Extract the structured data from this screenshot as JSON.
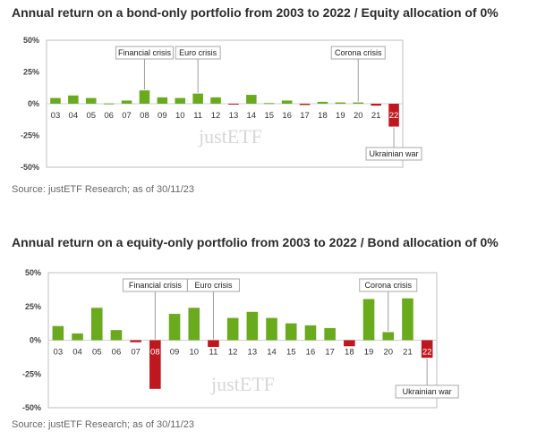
{
  "charts": [
    {
      "title": "Annual return on a bond-only portfolio from 2003 to 2022 / Equity allocation of 0%",
      "source": "Source: justETF Research; as of 30/11/23",
      "watermark": "justETF"
    },
    {
      "title": "Annual return on a equity-only portfolio from 2003 to 2022 / Bond allocation of 0%",
      "source": "Source: justETF Research; as of 30/11/23",
      "watermark": "justETF"
    }
  ],
  "colors": {
    "positive": "#6aab1d",
    "negative": "#c0171e",
    "frame": "#bfbfbf",
    "annotation_line": "#9e9e9e"
  },
  "chart_data": [
    {
      "type": "bar",
      "title": "Annual return on a bond-only portfolio from 2003 to 2022 / Equity allocation of 0%",
      "categories": [
        "03",
        "04",
        "05",
        "06",
        "07",
        "08",
        "09",
        "10",
        "11",
        "12",
        "13",
        "14",
        "15",
        "16",
        "17",
        "18",
        "19",
        "20",
        "21",
        "22"
      ],
      "values": [
        4.5,
        6.5,
        4.5,
        0.2,
        2.5,
        10.5,
        5,
        4.5,
        8,
        5,
        -0.5,
        7,
        0.5,
        2.5,
        -1,
        1.5,
        1,
        1,
        -1.5,
        -18
      ],
      "yticks": [
        "50%",
        "25%",
        "0%",
        "-25%",
        "-50%"
      ],
      "ylim": [
        -50,
        50
      ],
      "annotations": [
        {
          "label": "Financial crisis",
          "category": "08"
        },
        {
          "label": "Euro crisis",
          "category": "11"
        },
        {
          "label": "Corona crisis",
          "category": "20"
        },
        {
          "label": "Ukrainian war",
          "category": "22"
        }
      ],
      "grid": false
    },
    {
      "type": "bar",
      "title": "Annual return on a equity-only portfolio from 2003 to 2022 / Bond allocation of 0%",
      "categories": [
        "03",
        "04",
        "05",
        "06",
        "07",
        "08",
        "09",
        "10",
        "11",
        "12",
        "13",
        "14",
        "15",
        "16",
        "17",
        "18",
        "19",
        "20",
        "21",
        "22"
      ],
      "values": [
        10.5,
        5,
        24,
        7.5,
        -1.5,
        -36,
        19.5,
        24,
        -5,
        16.5,
        21,
        16.5,
        12.5,
        11,
        9,
        -4.5,
        30.5,
        6,
        31,
        -13
      ],
      "yticks": [
        "50%",
        "25%",
        "0%",
        "-25%",
        "-50%"
      ],
      "ylim": [
        -50,
        50
      ],
      "annotations": [
        {
          "label": "Financial crisis",
          "category": "08"
        },
        {
          "label": "Euro crisis",
          "category": "11"
        },
        {
          "label": "Corona crisis",
          "category": "20"
        },
        {
          "label": "Ukrainian war",
          "category": "22"
        }
      ],
      "grid": false
    }
  ]
}
